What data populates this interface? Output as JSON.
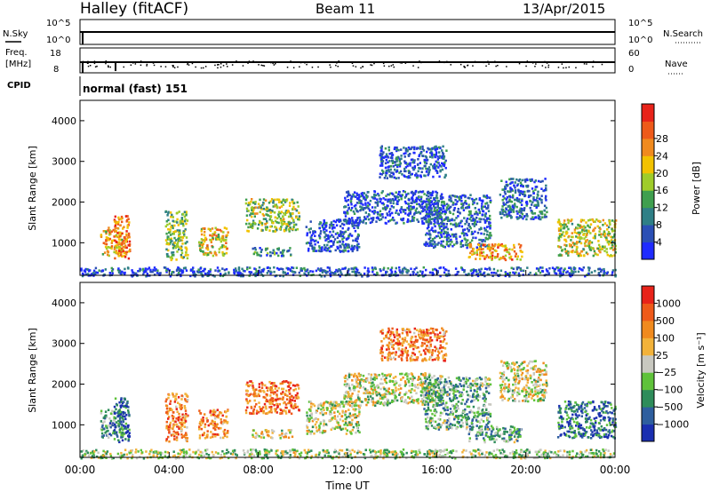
{
  "header": {
    "station": "Halley (fitACF)",
    "beam": "Beam 11",
    "date": "13/Apr/2015"
  },
  "nsky_panel": {
    "left_label": "N.Sky",
    "left_ticks": [
      "10^5",
      "10^0"
    ],
    "right_label": "N.Search",
    "right_ticks": [
      "10^5",
      "10^0"
    ]
  },
  "freq_panel": {
    "left_label_1": "Freq.",
    "left_label_2": "[MHz]",
    "left_ticks": [
      "18",
      "8"
    ],
    "right_label": "Nave",
    "right_ticks": [
      "60",
      "0"
    ]
  },
  "cpid_panel": {
    "label": "CPID",
    "mode": "normal (fast) 151"
  },
  "chart_data": [
    {
      "type": "heatmap",
      "name": "power",
      "ylabel": "Slant Range [km]",
      "xlabel": "",
      "ylim": [
        200,
        4500
      ],
      "yticks": [
        "1000",
        "2000",
        "3000",
        "4000"
      ],
      "colorbar_label": "Power [dB]",
      "colorbar_ticks": [
        "4",
        "8",
        "12",
        "16",
        "20",
        "24",
        "28"
      ],
      "colorbar_colors": [
        "#1f2bff",
        "#2b4fb5",
        "#2f7f86",
        "#3f9f4f",
        "#9fcc2a",
        "#f2c200",
        "#f08a1e",
        "#ee5a1a",
        "#e8231a"
      ],
      "echo_regions": [
        {
          "t": [
            0.9,
            1.9
          ],
          "r": [
            700,
            1400
          ],
          "level": 0.62
        },
        {
          "t": [
            1.5,
            2.2
          ],
          "r": [
            600,
            1700
          ],
          "level": 0.8
        },
        {
          "t": [
            3.8,
            4.8
          ],
          "r": [
            600,
            1800
          ],
          "level": 0.45
        },
        {
          "t": [
            5.3,
            6.6
          ],
          "r": [
            700,
            1400
          ],
          "level": 0.6
        },
        {
          "t": [
            7.4,
            9.8
          ],
          "r": [
            1300,
            2100
          ],
          "level": 0.5
        },
        {
          "t": [
            7.7,
            9.5
          ],
          "r": [
            700,
            900
          ],
          "level": 0.25
        },
        {
          "t": [
            10.1,
            12.5
          ],
          "r": [
            800,
            1600
          ],
          "level": 0.15
        },
        {
          "t": [
            11.8,
            16.2
          ],
          "r": [
            1500,
            2300
          ],
          "level": 0.15
        },
        {
          "t": [
            13.4,
            16.4
          ],
          "r": [
            2600,
            3400
          ],
          "level": 0.15
        },
        {
          "t": [
            15.4,
            18.4
          ],
          "r": [
            900,
            2200
          ],
          "level": 0.2
        },
        {
          "t": [
            17.4,
            19.8
          ],
          "r": [
            600,
            1000
          ],
          "level": 0.7
        },
        {
          "t": [
            18.8,
            20.9
          ],
          "r": [
            1600,
            2600
          ],
          "level": 0.2
        },
        {
          "t": [
            21.4,
            24.0
          ],
          "r": [
            700,
            1600
          ],
          "level": 0.55
        },
        {
          "t": [
            0.0,
            24.0
          ],
          "r": [
            200,
            420
          ],
          "level": 0.15
        }
      ]
    },
    {
      "type": "heatmap",
      "name": "velocity",
      "ylabel": "Slant Range [km]",
      "xlabel": "Time UT",
      "ylim": [
        200,
        4500
      ],
      "yticks": [
        "1000",
        "2000",
        "3000",
        "4000"
      ],
      "xticks": [
        "00:00",
        "04:00",
        "08:00",
        "12:00",
        "16:00",
        "20:00",
        "00:00"
      ],
      "colorbar_label": "Velocity [m s⁻¹]",
      "colorbar_ticks": [
        "1000",
        "500",
        "100",
        "25",
        "−25",
        "−100",
        "−500",
        "−1000"
      ],
      "colorbar_colors": [
        "#1a2fb0",
        "#2e5e9e",
        "#2e8c5a",
        "#5fc23a",
        "#c8c8c0",
        "#f2b23a",
        "#f08a1e",
        "#ee5a1a",
        "#e8231a"
      ],
      "echo_regions": [
        {
          "t": [
            0.9,
            1.9
          ],
          "r": [
            700,
            1400
          ],
          "level": 0.3
        },
        {
          "t": [
            1.5,
            2.2
          ],
          "r": [
            600,
            1700
          ],
          "level": 0.2
        },
        {
          "t": [
            3.8,
            4.8
          ],
          "r": [
            600,
            1800
          ],
          "level": 0.75
        },
        {
          "t": [
            5.3,
            6.6
          ],
          "r": [
            700,
            1400
          ],
          "level": 0.75
        },
        {
          "t": [
            7.4,
            9.8
          ],
          "r": [
            1300,
            2100
          ],
          "level": 0.78
        },
        {
          "t": [
            7.7,
            9.5
          ],
          "r": [
            700,
            900
          ],
          "level": 0.55
        },
        {
          "t": [
            10.1,
            12.5
          ],
          "r": [
            800,
            1600
          ],
          "level": 0.5
        },
        {
          "t": [
            11.8,
            16.2
          ],
          "r": [
            1500,
            2300
          ],
          "level": 0.5
        },
        {
          "t": [
            13.4,
            16.4
          ],
          "r": [
            2600,
            3400
          ],
          "level": 0.75
        },
        {
          "t": [
            15.4,
            18.4
          ],
          "r": [
            900,
            2200
          ],
          "level": 0.35
        },
        {
          "t": [
            17.4,
            19.8
          ],
          "r": [
            600,
            1000
          ],
          "level": 0.35
        },
        {
          "t": [
            18.8,
            20.9
          ],
          "r": [
            1600,
            2600
          ],
          "level": 0.5
        },
        {
          "t": [
            21.4,
            24.0
          ],
          "r": [
            700,
            1600
          ],
          "level": 0.2
        },
        {
          "t": [
            0.0,
            24.0
          ],
          "r": [
            200,
            420
          ],
          "level": 0.45
        }
      ]
    }
  ]
}
